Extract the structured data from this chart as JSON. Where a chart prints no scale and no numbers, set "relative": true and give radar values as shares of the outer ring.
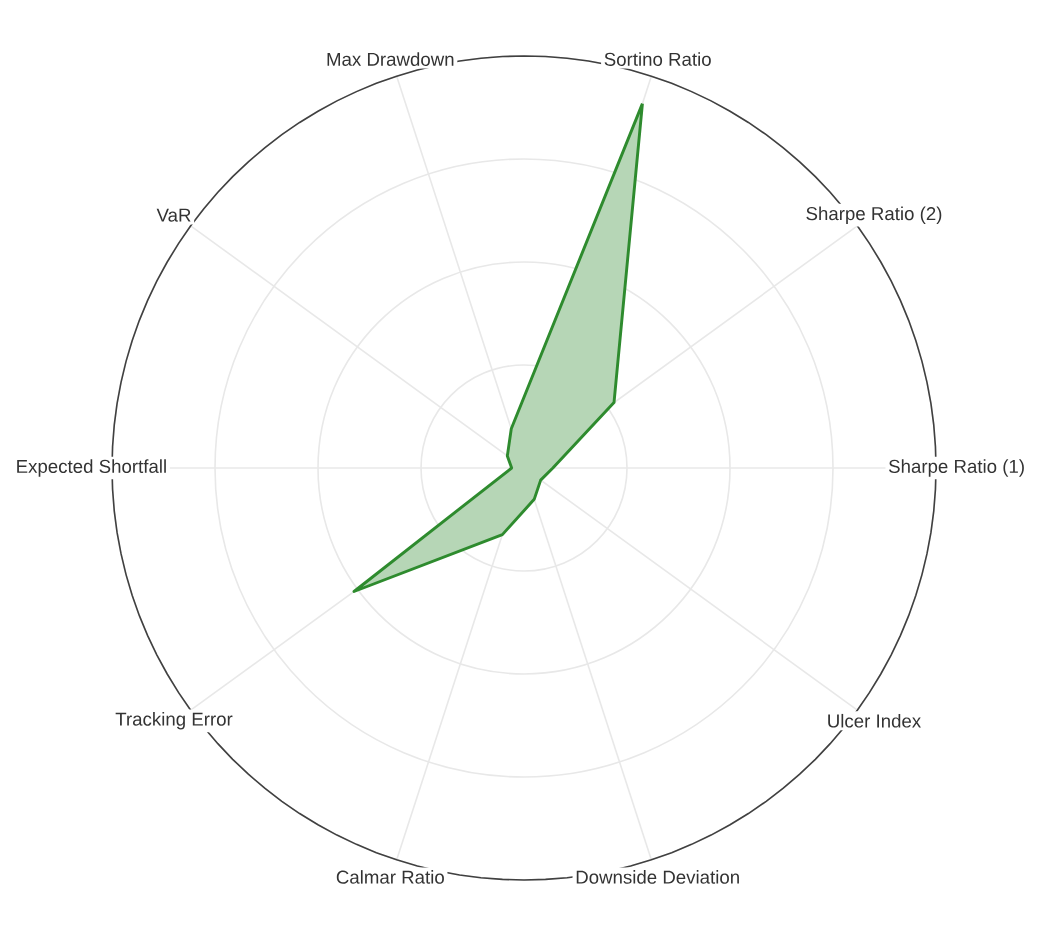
{
  "chart_data": {
    "type": "radar",
    "relative": true,
    "grid": true,
    "categories": [
      "Sortino Ratio",
      "Sharpe Ratio (2)",
      "Sharpe Ratio (1)",
      "Ulcer Index",
      "Downside Deviation",
      "Calmar Ratio",
      "Tracking Error",
      "Expected Shortfall",
      "VaR",
      "Max Drawdown"
    ],
    "series": [
      {
        "color": "#2e8b2e",
        "values": [
          0.93,
          0.27,
          0.07,
          0.05,
          0.08,
          0.17,
          0.51,
          0.03,
          0.05,
          0.1
        ]
      }
    ]
  }
}
